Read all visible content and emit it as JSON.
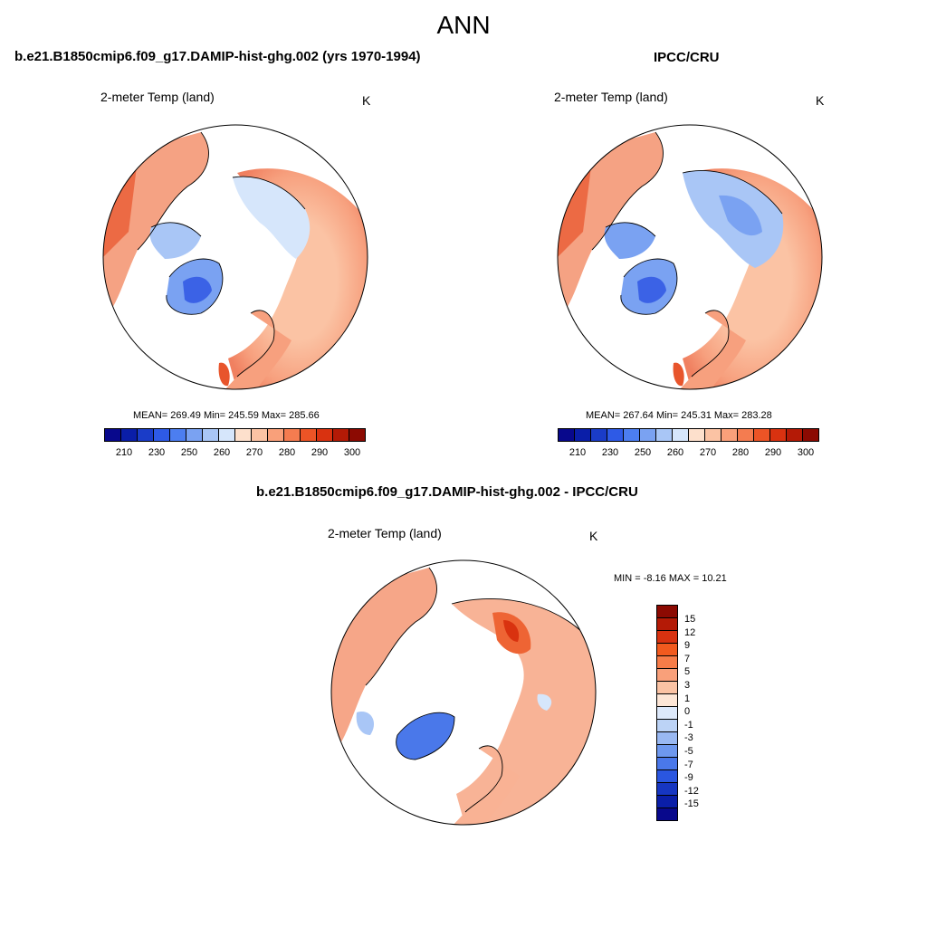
{
  "page": {
    "title": "ANN"
  },
  "panel_model": {
    "title": "b.e21.B1850cmip6.f09_g17.DAMIP-hist-ghg.002 (yrs 1970-1994)",
    "variable": "2-meter Temp (land)",
    "unit": "K",
    "stats": "MEAN= 269.49  Min= 245.59  Max= 285.66",
    "mean": 269.49,
    "min": 245.59,
    "max": 285.66
  },
  "panel_obs": {
    "title": "IPCC/CRU",
    "variable": "2-meter Temp (land)",
    "unit": "K",
    "stats": "MEAN= 267.64  Min= 245.31  Max= 283.28",
    "mean": 267.64,
    "min": 245.31,
    "max": 283.28
  },
  "panel_diff": {
    "title": "b.e21.B1850cmip6.f09_g17.DAMIP-hist-ghg.002 - IPCC/CRU",
    "variable": "2-meter Temp (land)",
    "unit": "K",
    "minmax": "MIN =  -8.16 MAX =  10.21",
    "min": -8.16,
    "max": 10.21
  },
  "colorbar_abs": {
    "colors": [
      "#08088c",
      "#0a1ea8",
      "#1a3cc8",
      "#2e5ae6",
      "#4c7ef0",
      "#7aa2f2",
      "#a9c6f6",
      "#d6e6fb",
      "#fde0cc",
      "#fbc3a4",
      "#f9a07a",
      "#f47c50",
      "#ec5426",
      "#d93210",
      "#b41a06",
      "#8c0a02"
    ],
    "ticks": [
      "210",
      "230",
      "250",
      "260",
      "270",
      "280",
      "290",
      "300"
    ]
  },
  "colorbar_diff": {
    "colors": [
      "#8c0a02",
      "#b41a06",
      "#d93210",
      "#f25a1e",
      "#f77c48",
      "#f9a07a",
      "#fbc3a4",
      "#fde6d6",
      "#dde9fb",
      "#bcd3f6",
      "#99b8f2",
      "#6e98ee",
      "#4a78ea",
      "#2a56e0",
      "#1636c2",
      "#0a1ea8",
      "#08088c"
    ],
    "ticks": [
      "15",
      "12",
      "9",
      "7",
      "5",
      "3",
      "1",
      "0",
      "-1",
      "-3",
      "-5",
      "-7",
      "-9",
      "-12",
      "-15"
    ]
  },
  "colors": {
    "warm": "#f28c6a",
    "cold": "#4a78e8",
    "land_outline": "#000000"
  }
}
